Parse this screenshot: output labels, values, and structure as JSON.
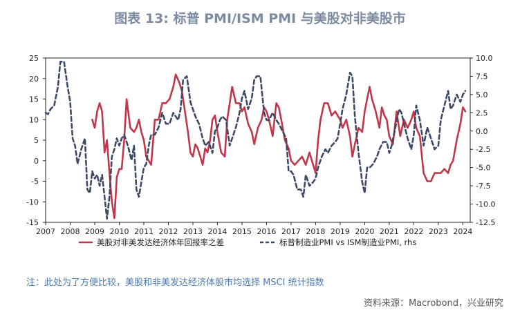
{
  "title": "图表 13: 标普 PMI/ISM PMI 与美股对非美股市",
  "note": "注：此处为了方便比较，美股和非美发达经济体股市均选择 MSCI 统计指数",
  "source": "资料来源：Macrobond，兴业研究",
  "colors": {
    "red": "#c0364a",
    "navy": "#3b4a66"
  },
  "chart_data": {
    "type": "line",
    "left_ylim": [
      -15,
      25
    ],
    "left_ticks": [
      "25",
      "20",
      "15",
      "10",
      "5",
      "0",
      "-5",
      "-10",
      "-15"
    ],
    "right_ylim": [
      -12.5,
      10.0
    ],
    "right_ticks": [
      "10.0",
      "7.5",
      "5.0",
      "2.5",
      "0.0",
      "-2.5",
      "-5.0",
      "-7.5",
      "-10.0",
      "-12.5"
    ],
    "xlim": [
      2007,
      2024.3
    ],
    "x_ticks": [
      "2007",
      "2008",
      "2009",
      "2010",
      "2011",
      "2012",
      "2013",
      "2014",
      "2015",
      "2016",
      "2017",
      "2018",
      "2019",
      "2020",
      "2021",
      "2022",
      "2023",
      "2024"
    ],
    "grid": false,
    "legend_position": "bottom",
    "series": [
      {
        "name": "美股对非美发达经济体年回报率之差",
        "axis": "left",
        "color": "#c0364a",
        "style": "solid",
        "x": [
          2008.9,
          2009.0,
          2009.1,
          2009.2,
          2009.3,
          2009.4,
          2009.5,
          2009.6,
          2009.7,
          2009.8,
          2009.9,
          2010.0,
          2010.1,
          2010.2,
          2010.3,
          2010.45,
          2010.6,
          2010.7,
          2010.8,
          2010.9,
          2011.0,
          2011.1,
          2011.2,
          2011.3,
          2011.45,
          2011.6,
          2011.75,
          2011.9,
          2012.05,
          2012.2,
          2012.3,
          2012.45,
          2012.55,
          2012.7,
          2012.8,
          2012.9,
          2013.0,
          2013.1,
          2013.2,
          2013.3,
          2013.4,
          2013.5,
          2013.6,
          2013.7,
          2013.8,
          2013.9,
          2014.0,
          2014.15,
          2014.3,
          2014.4,
          2014.5,
          2014.6,
          2014.75,
          2014.9,
          2015.0,
          2015.1,
          2015.25,
          2015.4,
          2015.5,
          2015.65,
          2015.8,
          2015.9,
          2016.0,
          2016.1,
          2016.25,
          2016.4,
          2016.5,
          2016.6,
          2016.75,
          2016.9,
          2017.0,
          2017.15,
          2017.3,
          2017.45,
          2017.6,
          2017.75,
          2017.9,
          2018.0,
          2018.1,
          2018.2,
          2018.35,
          2018.5,
          2018.65,
          2018.8,
          2018.9,
          2019.0,
          2019.1,
          2019.25,
          2019.4,
          2019.5,
          2019.6,
          2019.75,
          2019.9,
          2020.0,
          2020.1,
          2020.2,
          2020.3,
          2020.45,
          2020.6,
          2020.7,
          2020.8,
          2020.9,
          2021.0,
          2021.15,
          2021.3,
          2021.45,
          2021.6,
          2021.75,
          2021.9,
          2022.0,
          2022.1,
          2022.25,
          2022.4,
          2022.55,
          2022.7,
          2022.85,
          2023.0,
          2023.1,
          2023.25,
          2023.4,
          2023.5,
          2023.6,
          2023.75,
          2023.9,
          2024.0,
          2024.1
        ],
        "y": [
          10,
          8,
          12,
          14,
          12,
          2,
          5,
          -3,
          -10,
          -14,
          -4,
          -2,
          -2,
          5,
          15,
          8,
          7,
          8,
          10,
          7,
          5,
          1,
          0,
          -1,
          10,
          10,
          14,
          14,
          15,
          18,
          21,
          19,
          17,
          11,
          7,
          2,
          1,
          4,
          3,
          1,
          -1,
          3,
          2,
          5,
          10,
          11,
          7,
          2,
          1,
          10,
          14,
          18,
          14,
          14,
          12,
          13,
          9,
          7,
          4,
          8,
          10,
          13,
          12,
          10,
          6,
          14,
          13,
          10,
          5,
          3,
          0,
          -1,
          0,
          1,
          -1,
          2,
          -1,
          -3,
          5,
          10,
          14,
          14,
          11,
          12,
          11,
          10,
          8,
          10,
          6,
          1,
          4,
          8,
          7,
          12,
          15,
          18,
          15,
          12,
          8,
          13,
          11,
          10,
          6,
          4,
          12,
          6,
          10,
          8,
          10,
          12,
          8,
          6,
          -3,
          -5,
          -5,
          -3,
          -3,
          -3,
          -2,
          -3,
          -1,
          0,
          5,
          9,
          13,
          12
        ]
      },
      {
        "name": "标普制造业PMI vs ISM制造业PMI, rhs",
        "axis": "right",
        "color": "#3b4a66",
        "style": "dashed",
        "x": [
          2007.0,
          2007.1,
          2007.2,
          2007.35,
          2007.5,
          2007.6,
          2007.75,
          2007.9,
          2008.0,
          2008.1,
          2008.2,
          2008.3,
          2008.45,
          2008.6,
          2008.7,
          2008.8,
          2008.9,
          2009.0,
          2009.1,
          2009.2,
          2009.3,
          2009.4,
          2009.5,
          2009.6,
          2009.7,
          2009.8,
          2009.9,
          2010.0,
          2010.1,
          2010.2,
          2010.35,
          2010.5,
          2010.6,
          2010.7,
          2010.8,
          2010.9,
          2011.0,
          2011.1,
          2011.2,
          2011.3,
          2011.45,
          2011.6,
          2011.75,
          2011.9,
          2012.05,
          2012.2,
          2012.3,
          2012.4,
          2012.5,
          2012.6,
          2012.75,
          2012.9,
          2013.0,
          2013.1,
          2013.25,
          2013.4,
          2013.5,
          2013.65,
          2013.8,
          2013.9,
          2014.0,
          2014.1,
          2014.2,
          2014.35,
          2014.5,
          2014.6,
          2014.75,
          2014.9,
          2015.0,
          2015.1,
          2015.25,
          2015.4,
          2015.5,
          2015.6,
          2015.75,
          2015.9,
          2016.0,
          2016.1,
          2016.25,
          2016.4,
          2016.5,
          2016.65,
          2016.8,
          2016.9,
          2017.0,
          2017.1,
          2017.25,
          2017.4,
          2017.5,
          2017.6,
          2017.75,
          2017.9,
          2018.0,
          2018.1,
          2018.25,
          2018.4,
          2018.5,
          2018.65,
          2018.8,
          2018.9,
          2019.0,
          2019.1,
          2019.25,
          2019.4,
          2019.5,
          2019.6,
          2019.75,
          2019.9,
          2020.0,
          2020.1,
          2020.2,
          2020.35,
          2020.5,
          2020.6,
          2020.75,
          2020.9,
          2021.0,
          2021.1,
          2021.25,
          2021.4,
          2021.5,
          2021.6,
          2021.75,
          2021.9,
          2022.0,
          2022.1,
          2022.25,
          2022.4,
          2022.55,
          2022.7,
          2022.85,
          2023.0,
          2023.1,
          2023.25,
          2023.4,
          2023.5,
          2023.6,
          2023.75,
          2023.9,
          2024.0,
          2024.1
        ],
        "y": [
          2.5,
          2.3,
          3.0,
          3.5,
          6.0,
          9.5,
          9.5,
          6.0,
          4.0,
          -1.0,
          -2.0,
          -4.5,
          -2.5,
          -1.0,
          -8.0,
          -8.5,
          -5.5,
          -6.5,
          -6.0,
          -7.5,
          -6.0,
          -9.0,
          -12.0,
          -9.0,
          -3.5,
          -2.5,
          -1.0,
          -2.0,
          -1.0,
          -0.5,
          -2.0,
          -4.0,
          -2.0,
          -8.0,
          -9.0,
          -7.0,
          -5.0,
          -4.5,
          -2.0,
          -0.5,
          -0.5,
          0.5,
          2.5,
          1.0,
          1.0,
          2.5,
          2.0,
          1.5,
          3.0,
          7.0,
          7.5,
          4.0,
          3.0,
          2.0,
          1.0,
          -1.0,
          -2.0,
          -1.5,
          -3.0,
          0.0,
          0.5,
          1.5,
          2.0,
          1.5,
          -2.0,
          -1.0,
          0.5,
          2.5,
          4.5,
          5.5,
          3.0,
          4.5,
          7.0,
          7.5,
          7.5,
          2.5,
          1.5,
          1.5,
          2.5,
          1.5,
          1.0,
          0.0,
          -1.0,
          -5.5,
          -5.5,
          -6.0,
          -8.0,
          -8.0,
          -9.0,
          -6.0,
          -7.5,
          -7.0,
          -6.5,
          -5.0,
          -3.5,
          -2.5,
          -3.0,
          -2.0,
          -1.5,
          -1.0,
          1.0,
          3.0,
          5.0,
          8.0,
          7.5,
          2.0,
          -3.0,
          -7.0,
          -8.5,
          -5.0,
          -5.0,
          -4.5,
          -3.5,
          -2.5,
          -1.5,
          -1.5,
          -3.0,
          -2.0,
          0.5,
          3.0,
          2.5,
          1.0,
          -1.0,
          -2.5,
          -0.5,
          3.5,
          1.5,
          -2.0,
          0.5,
          -1.0,
          -2.5,
          -2.0,
          1.5,
          3.5,
          5.5,
          3.0,
          3.5,
          5.0,
          4.0,
          5.0,
          5.5
        ]
      }
    ]
  }
}
